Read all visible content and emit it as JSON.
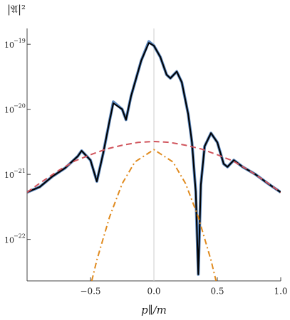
{
  "chart_data": {
    "type": "line",
    "title": "|𝔄|²",
    "x_label": "p∥/m",
    "log_y": true,
    "xlim": [
      -1.0,
      1.0
    ],
    "ylim": [
      2.3e-23,
      1.75e-19
    ],
    "xticks": [
      {
        "value": -0.5,
        "label": "−0.5"
      },
      {
        "value": 0,
        "label": "0.0"
      },
      {
        "value": 0.5,
        "label": "0.5"
      },
      {
        "value": 1.0,
        "label": "1.0"
      }
    ],
    "yticks": [
      {
        "value": 1e-22,
        "base": "10",
        "exponent": "−22"
      },
      {
        "value": 1e-21,
        "base": "10",
        "exponent": "−21"
      },
      {
        "value": 1e-20,
        "base": "10",
        "exponent": "−20"
      },
      {
        "value": 1e-19,
        "base": "10",
        "exponent": "−19"
      }
    ],
    "zero_line": true,
    "series": [
      {
        "color": "#5a86bd",
        "dash": "none",
        "width": 4,
        "x": [
          -1.0,
          -0.9,
          -0.8,
          -0.7,
          -0.6,
          -0.57,
          -0.5,
          -0.45,
          -0.4,
          -0.35,
          -0.32,
          -0.25,
          -0.22,
          -0.18,
          -0.1,
          -0.04,
          0.0,
          0.05,
          0.1,
          0.13,
          0.18,
          0.22,
          0.27,
          0.3,
          0.33,
          0.35,
          0.37,
          0.4,
          0.45,
          0.5,
          0.55,
          0.58,
          0.63,
          0.7,
          0.8,
          0.9,
          1.0
        ],
        "values": [
          5.3e-22,
          6.4e-22,
          9.3e-22,
          1.25e-21,
          1.9e-21,
          2.3e-21,
          1.65e-21,
          7.8e-22,
          2.1e-21,
          6.6e-21,
          1.3e-20,
          1e-20,
          6.9e-21,
          1.6e-20,
          5.6e-20,
          1.1e-19,
          9.5e-20,
          6.4e-20,
          3.4e-20,
          3e-20,
          3.8e-20,
          2.6e-20,
          8.5e-21,
          3.1e-21,
          5.4e-22,
          2.9e-23,
          6.9e-22,
          2.7e-21,
          4.3e-21,
          3.1e-21,
          1.45e-21,
          1.3e-21,
          1.65e-21,
          1.3e-21,
          1e-21,
          7.2e-22,
          5.3e-22
        ]
      },
      {
        "color": "#000000",
        "dash": "none",
        "width": 2,
        "x": [
          -1.0,
          -0.9,
          -0.8,
          -0.7,
          -0.6,
          -0.57,
          -0.5,
          -0.45,
          -0.4,
          -0.35,
          -0.32,
          -0.25,
          -0.22,
          -0.18,
          -0.1,
          -0.04,
          0.0,
          0.05,
          0.1,
          0.13,
          0.18,
          0.22,
          0.27,
          0.3,
          0.33,
          0.35,
          0.37,
          0.4,
          0.45,
          0.5,
          0.55,
          0.58,
          0.63,
          0.7,
          0.8,
          0.9,
          1.0
        ],
        "values": [
          5.3e-22,
          6.4e-22,
          9.3e-22,
          1.25e-21,
          1.9e-21,
          2.3e-21,
          1.65e-21,
          7.8e-22,
          2.1e-21,
          6.6e-21,
          1.24e-20,
          1e-20,
          6.9e-21,
          1.6e-20,
          5.6e-20,
          1.05e-19,
          9.5e-20,
          6.4e-20,
          3.4e-20,
          3e-20,
          3.8e-20,
          2.6e-20,
          8.5e-21,
          3.1e-21,
          5.4e-22,
          2.9e-23,
          6.9e-22,
          2.7e-21,
          4.3e-21,
          3.1e-21,
          1.45e-21,
          1.3e-21,
          1.65e-21,
          1.3e-21,
          1e-21,
          7.2e-22,
          5.3e-22
        ]
      },
      {
        "color": "#d0545c",
        "dash": "8 5",
        "width": 2,
        "x": [
          -1.0,
          -0.875,
          -0.75,
          -0.625,
          -0.5,
          -0.375,
          -0.25,
          -0.125,
          0.0,
          0.125,
          0.25,
          0.375,
          0.5,
          0.625,
          0.75,
          0.875,
          1.0
        ],
        "values": [
          5.3e-22,
          7.9e-22,
          1.15e-21,
          1.6e-21,
          2e-21,
          2.45e-21,
          2.8e-21,
          3.1e-21,
          3.2e-21,
          3.1e-21,
          2.8e-21,
          2.45e-21,
          2e-21,
          1.6e-21,
          1.15e-21,
          7.9e-22,
          5.3e-22
        ]
      },
      {
        "color": "#e08a1e",
        "dash": "8 4 2 4",
        "width": 2,
        "x": [
          -0.49,
          -0.45,
          -0.35,
          -0.25,
          -0.15,
          0.0,
          0.15,
          0.25,
          0.35,
          0.45,
          0.49
        ],
        "values": [
          2.3e-23,
          4.8e-23,
          2.2e-22,
          7.2e-22,
          1.55e-21,
          2.4e-21,
          1.55e-21,
          7.2e-22,
          2.2e-22,
          4.8e-23,
          2.3e-23
        ]
      }
    ]
  }
}
